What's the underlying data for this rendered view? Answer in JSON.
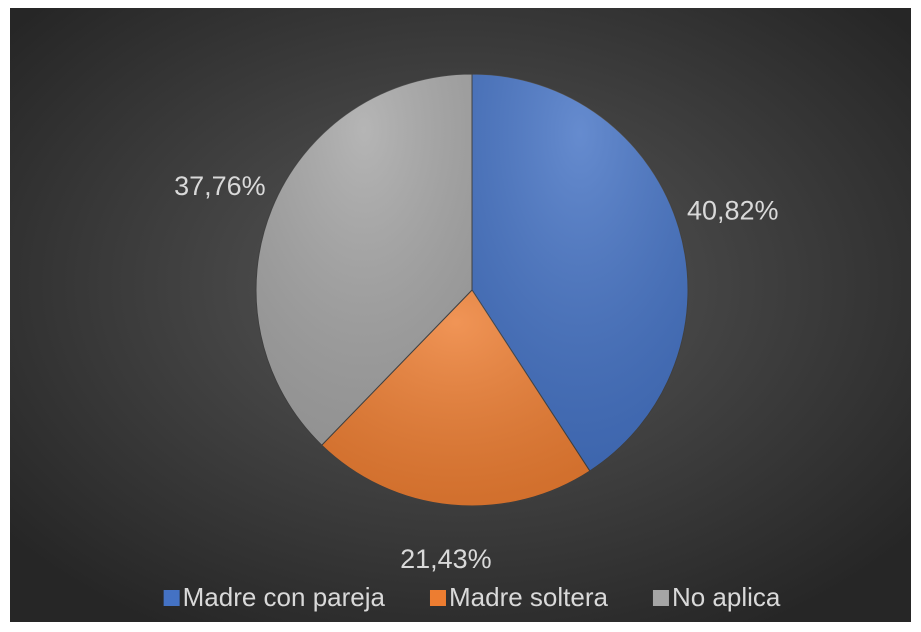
{
  "chart_data": {
    "type": "pie",
    "categories": [
      "Madre con pareja",
      "Madre soltera",
      "No aplica"
    ],
    "values": [
      40.82,
      21.43,
      37.76
    ],
    "value_labels": [
      "40,82%",
      "21,43%",
      "37,76%"
    ],
    "colors": [
      "#4472c4",
      "#ed7d31",
      "#a5a5a5"
    ],
    "legend": "bottom"
  }
}
